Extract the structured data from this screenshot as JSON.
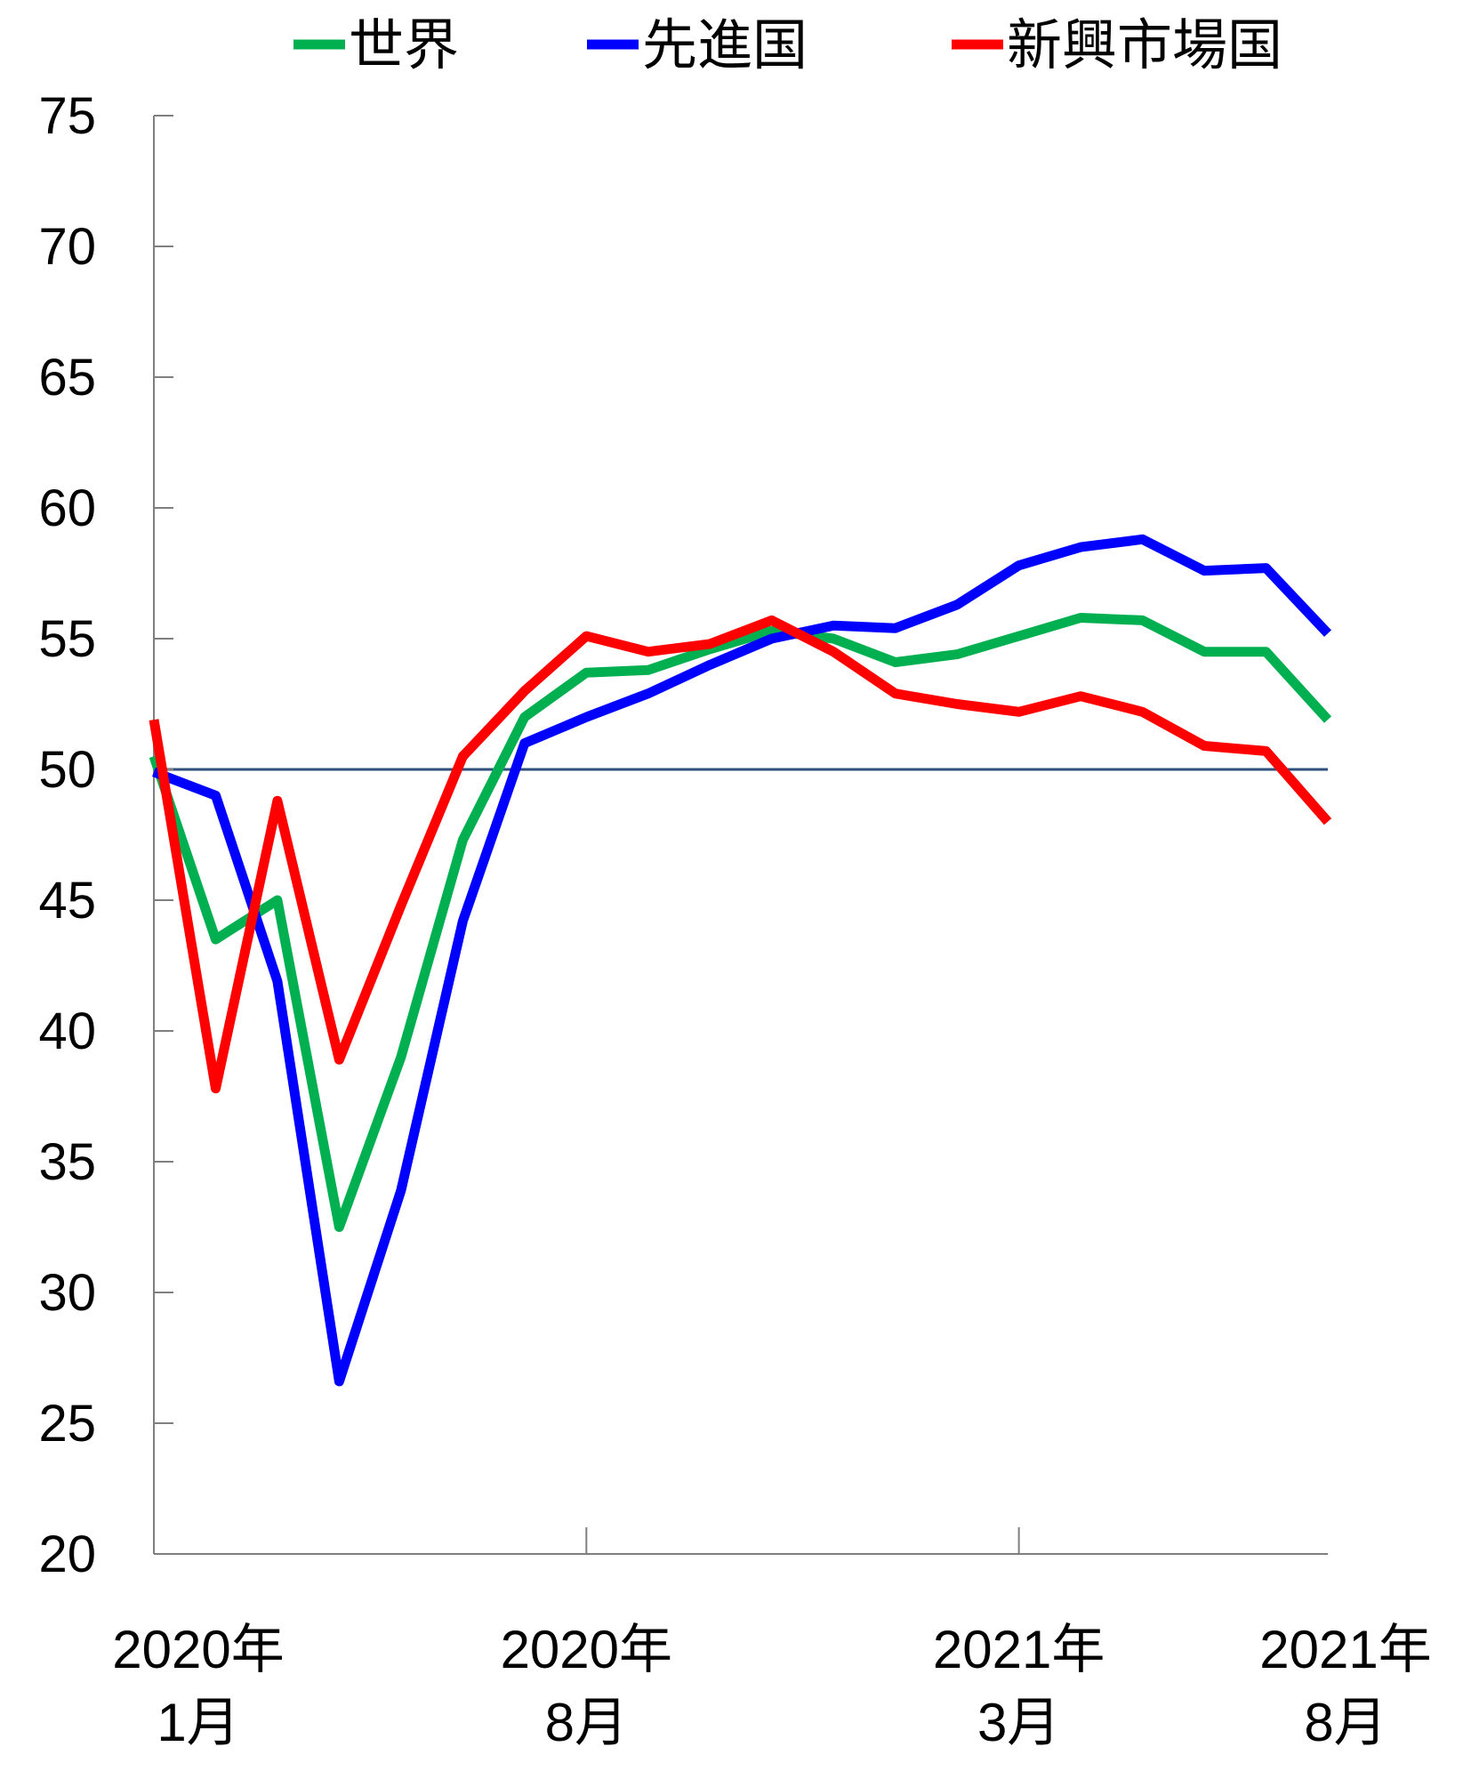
{
  "chart_data": {
    "type": "line",
    "ylim": [
      20,
      75
    ],
    "y_ticks": [
      "75",
      "70",
      "65",
      "60",
      "55",
      "50",
      "45",
      "40",
      "35",
      "30",
      "25",
      "20"
    ],
    "x_count": 20,
    "x_labels": [
      {
        "index": 0,
        "line1": "2020年",
        "line2": "1月"
      },
      {
        "index": 7,
        "line1": "2020年",
        "line2": "8月"
      },
      {
        "index": 14,
        "line1": "2021年",
        "line2": "3月"
      },
      {
        "index": 19,
        "line1": "2021年",
        "line2": "8月"
      }
    ],
    "reference_line": 50,
    "legend_position": "top",
    "series": [
      {
        "name": "世界",
        "color": "#00B050",
        "values": [
          50.5,
          43.5,
          45.0,
          32.5,
          39.0,
          47.3,
          52.0,
          53.7,
          53.8,
          54.6,
          55.3,
          55.0,
          54.1,
          54.4,
          55.1,
          55.8,
          55.7,
          54.5,
          54.5,
          51.9
        ]
      },
      {
        "name": "先進国",
        "color": "#0000FF",
        "values": [
          49.9,
          49.0,
          41.9,
          26.6,
          33.9,
          44.2,
          51.0,
          52.0,
          52.9,
          54.0,
          55.0,
          55.5,
          55.4,
          56.3,
          57.8,
          58.5,
          58.8,
          57.6,
          57.7,
          55.2
        ]
      },
      {
        "name": "新興市場国",
        "color": "#FF0000",
        "values": [
          51.9,
          37.8,
          48.8,
          38.9,
          44.8,
          50.5,
          53.0,
          55.1,
          54.5,
          54.8,
          55.7,
          54.5,
          52.9,
          52.5,
          52.2,
          52.8,
          52.2,
          50.9,
          50.7,
          48.0
        ]
      }
    ]
  },
  "colors": {
    "axis": "#7F7F7F",
    "reference_line": "#2F4F7F"
  }
}
